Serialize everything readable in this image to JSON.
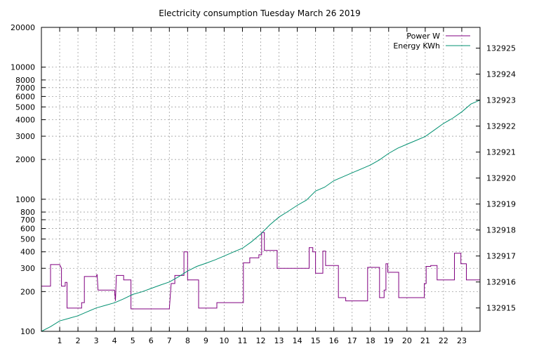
{
  "chart_data": {
    "type": "line",
    "title": "Electricity consumption Tuesday March 26 2019",
    "xlabel": "",
    "ylabel": "",
    "grid": true,
    "legend_position": "top-right",
    "xlim": [
      0,
      24
    ],
    "x_ticks": [
      1,
      2,
      3,
      4,
      5,
      6,
      7,
      8,
      9,
      10,
      11,
      12,
      13,
      14,
      15,
      16,
      17,
      18,
      19,
      20,
      21,
      22,
      23
    ],
    "y_scale": "log",
    "ylim": [
      100,
      20000
    ],
    "y_ticks": [
      100,
      200,
      300,
      400,
      500,
      600,
      700,
      800,
      1000,
      2000,
      3000,
      4000,
      5000,
      6000,
      7000,
      8000,
      10000,
      20000
    ],
    "y2lim": [
      132914.1,
      132925.8
    ],
    "y2_ticks": [
      132915,
      132916,
      132917,
      132918,
      132919,
      132920,
      132921,
      132922,
      132923,
      132924,
      132925
    ],
    "colors": {
      "power": "#800080",
      "energy": "#009070",
      "grid": "#a0a0a0",
      "axis": "#000000"
    },
    "series": [
      {
        "name": "Power W",
        "axis": "left",
        "step": true,
        "points": [
          [
            0,
            220
          ],
          [
            0.5,
            220
          ],
          [
            0.5,
            320
          ],
          [
            1.0,
            320
          ],
          [
            1.1,
            300
          ],
          [
            1.1,
            220
          ],
          [
            1.3,
            220
          ],
          [
            1.3,
            235
          ],
          [
            1.4,
            235
          ],
          [
            1.4,
            150
          ],
          [
            2.2,
            150
          ],
          [
            2.2,
            165
          ],
          [
            2.35,
            165
          ],
          [
            2.35,
            260
          ],
          [
            3.0,
            260
          ],
          [
            3.05,
            270
          ],
          [
            3.1,
            205
          ],
          [
            4.0,
            205
          ],
          [
            4.05,
            170
          ],
          [
            4.1,
            265
          ],
          [
            4.5,
            265
          ],
          [
            4.5,
            245
          ],
          [
            4.9,
            245
          ],
          [
            4.9,
            148
          ],
          [
            7.0,
            148
          ],
          [
            7.1,
            230
          ],
          [
            7.3,
            230
          ],
          [
            7.3,
            265
          ],
          [
            7.8,
            265
          ],
          [
            7.8,
            400
          ],
          [
            8.0,
            400
          ],
          [
            8.0,
            245
          ],
          [
            8.6,
            245
          ],
          [
            8.6,
            150
          ],
          [
            9.6,
            150
          ],
          [
            9.6,
            165
          ],
          [
            11.05,
            165
          ],
          [
            11.05,
            330
          ],
          [
            11.4,
            330
          ],
          [
            11.4,
            360
          ],
          [
            11.9,
            360
          ],
          [
            11.9,
            380
          ],
          [
            12.05,
            380
          ],
          [
            12.05,
            560
          ],
          [
            12.2,
            560
          ],
          [
            12.2,
            410
          ],
          [
            12.9,
            410
          ],
          [
            12.9,
            300
          ],
          [
            14.65,
            300
          ],
          [
            14.65,
            430
          ],
          [
            14.85,
            430
          ],
          [
            14.85,
            400
          ],
          [
            15.0,
            400
          ],
          [
            15.0,
            275
          ],
          [
            15.4,
            275
          ],
          [
            15.4,
            405
          ],
          [
            15.55,
            405
          ],
          [
            15.55,
            315
          ],
          [
            16.25,
            315
          ],
          [
            16.25,
            180
          ],
          [
            16.65,
            180
          ],
          [
            16.65,
            170
          ],
          [
            17.85,
            170
          ],
          [
            17.85,
            305
          ],
          [
            18.5,
            305
          ],
          [
            18.5,
            180
          ],
          [
            18.75,
            180
          ],
          [
            18.75,
            205
          ],
          [
            18.85,
            205
          ],
          [
            18.85,
            325
          ],
          [
            18.95,
            325
          ],
          [
            18.95,
            280
          ],
          [
            19.55,
            280
          ],
          [
            19.55,
            180
          ],
          [
            20.95,
            180
          ],
          [
            20.95,
            230
          ],
          [
            21.05,
            230
          ],
          [
            21.05,
            310
          ],
          [
            21.3,
            310
          ],
          [
            21.3,
            315
          ],
          [
            21.65,
            315
          ],
          [
            21.65,
            245
          ],
          [
            22.6,
            245
          ],
          [
            22.6,
            390
          ],
          [
            22.95,
            390
          ],
          [
            22.95,
            325
          ],
          [
            23.25,
            325
          ],
          [
            23.25,
            245
          ],
          [
            24,
            245
          ]
        ]
      },
      {
        "name": "Energy KWh",
        "axis": "right",
        "step": false,
        "points": [
          [
            0,
            132914.1
          ],
          [
            0.5,
            132914.28
          ],
          [
            1.0,
            132914.5
          ],
          [
            1.5,
            132914.6
          ],
          [
            2.0,
            132914.7
          ],
          [
            2.5,
            132914.85
          ],
          [
            3.0,
            132915.0
          ],
          [
            3.5,
            132915.1
          ],
          [
            4.0,
            132915.2
          ],
          [
            4.5,
            132915.35
          ],
          [
            5.0,
            132915.52
          ],
          [
            5.5,
            132915.62
          ],
          [
            6.0,
            132915.75
          ],
          [
            6.5,
            132915.88
          ],
          [
            7.0,
            132916.0
          ],
          [
            7.5,
            132916.2
          ],
          [
            8.0,
            132916.42
          ],
          [
            8.5,
            132916.6
          ],
          [
            9.0,
            132916.72
          ],
          [
            9.5,
            132916.85
          ],
          [
            10.0,
            132917.0
          ],
          [
            10.5,
            132917.15
          ],
          [
            11.0,
            132917.3
          ],
          [
            11.5,
            132917.55
          ],
          [
            12.0,
            132917.85
          ],
          [
            12.5,
            132918.2
          ],
          [
            13.0,
            132918.5
          ],
          [
            13.5,
            132918.72
          ],
          [
            14.0,
            132918.95
          ],
          [
            14.5,
            132919.15
          ],
          [
            15.0,
            132919.5
          ],
          [
            15.5,
            132919.65
          ],
          [
            16.0,
            132919.9
          ],
          [
            16.5,
            132920.05
          ],
          [
            17.0,
            132920.2
          ],
          [
            17.5,
            132920.35
          ],
          [
            18.0,
            132920.5
          ],
          [
            18.5,
            132920.7
          ],
          [
            19.0,
            132920.95
          ],
          [
            19.5,
            132921.15
          ],
          [
            20.0,
            132921.3
          ],
          [
            20.5,
            132921.45
          ],
          [
            21.0,
            132921.6
          ],
          [
            21.5,
            132921.85
          ],
          [
            22.0,
            132922.1
          ],
          [
            22.5,
            132922.3
          ],
          [
            23.0,
            132922.55
          ],
          [
            23.5,
            132922.85
          ],
          [
            24,
            132923.0
          ]
        ]
      }
    ]
  }
}
